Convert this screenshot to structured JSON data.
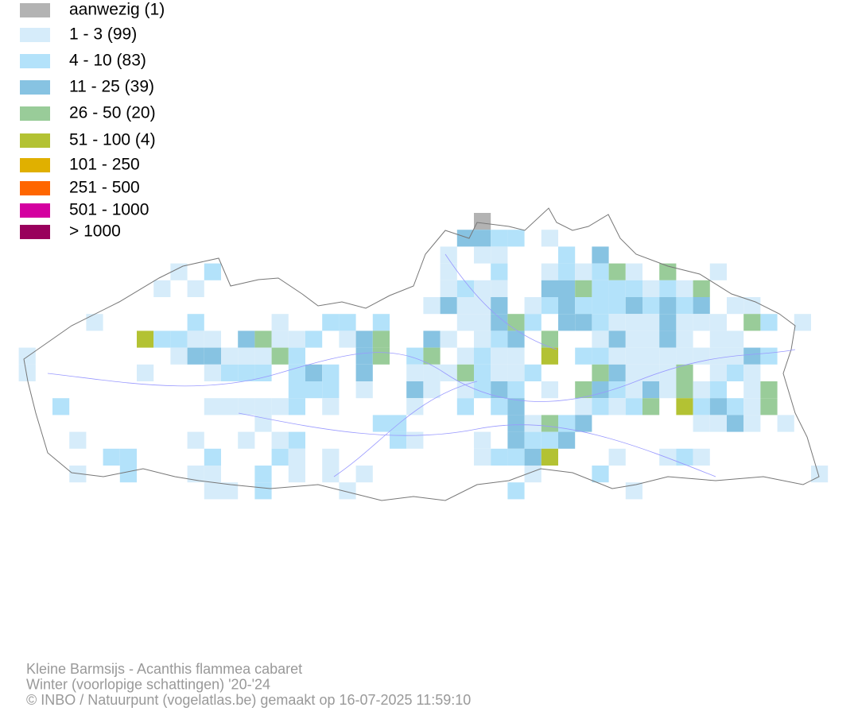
{
  "legend": {
    "items": [
      {
        "label": "aanwezig (1)",
        "color": "#b3b3b3"
      },
      {
        "label": "1 - 3 (99)",
        "color": "#d6ecfa"
      },
      {
        "label": "4 - 10 (83)",
        "color": "#b3e2fa"
      },
      {
        "label": "11 - 25 (39)",
        "color": "#87c3e2"
      },
      {
        "label": "26 - 50 (20)",
        "color": "#99cc99"
      },
      {
        "label": "51 - 100 (4)",
        "color": "#b3c233"
      },
      {
        "label": "101 - 250",
        "color": "#e0b000"
      },
      {
        "label": "251 - 500",
        "color": "#ff6600"
      },
      {
        "label": "501 - 1000",
        "color": "#d400a0"
      },
      {
        "label": "> 1000",
        "color": "#99005c"
      }
    ]
  },
  "footer": {
    "lines": [
      "Kleine Barmsijs - Acanthis flammea cabaret",
      "Winter (voorlopige schattingen) '20-'24",
      "© INBO / Natuurpunt (vogelatlas.be) gemaakt op 16-07-2025 11:59:10"
    ]
  }
}
